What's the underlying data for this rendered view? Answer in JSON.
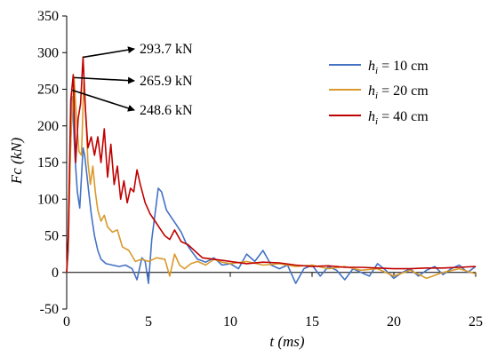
{
  "chart_data": {
    "type": "line",
    "title": "",
    "xlabel": "t (ms)",
    "ylabel": "Fc (kN)",
    "xlim": [
      0,
      25
    ],
    "ylim": [
      -50,
      350
    ],
    "x_ticks": [
      "0",
      "5",
      "10",
      "15",
      "20",
      "25"
    ],
    "y_ticks": [
      "-50",
      "0",
      "50",
      "100",
      "150",
      "200",
      "250",
      "300",
      "350"
    ],
    "grid": false,
    "legend": "upper-right",
    "series": [
      {
        "name": "hi = 10 cm",
        "label_italic": "h",
        "label_sub": "i",
        "label_rest": " = 10 cm",
        "color": "#4472c4",
        "x": [
          0,
          0.1,
          0.2,
          0.35,
          0.5,
          0.65,
          0.8,
          0.9,
          1.0,
          1.1,
          1.2,
          1.35,
          1.5,
          1.7,
          1.9,
          2.1,
          2.4,
          2.8,
          3.2,
          3.6,
          4.0,
          4.3,
          4.6,
          4.8,
          5.0,
          5.2,
          5.4,
          5.6,
          5.8,
          6.1,
          6.4,
          6.7,
          7.0,
          7.3,
          7.6,
          8.0,
          8.5,
          9.0,
          9.5,
          10.0,
          10.5,
          11.0,
          11.5,
          12.0,
          12.5,
          13.0,
          13.5,
          14.0,
          14.5,
          15.0,
          15.5,
          16.0,
          16.5,
          17.0,
          17.5,
          18.0,
          18.5,
          19.0,
          19.5,
          20.0,
          20.5,
          21.0,
          21.5,
          22.0,
          22.5,
          23.0,
          23.5,
          24.0,
          24.5,
          25.0
        ],
        "y": [
          0,
          30,
          150,
          240,
          160,
          110,
          88,
          130,
          170,
          160,
          140,
          110,
          80,
          50,
          30,
          18,
          12,
          10,
          8,
          10,
          5,
          -10,
          20,
          15,
          -15,
          45,
          80,
          115,
          110,
          85,
          75,
          65,
          55,
          40,
          30,
          18,
          14,
          20,
          10,
          12,
          5,
          25,
          15,
          30,
          10,
          5,
          10,
          -15,
          5,
          10,
          -5,
          8,
          3,
          -10,
          5,
          0,
          -5,
          12,
          3,
          -8,
          0,
          5,
          -5,
          3,
          8,
          -3,
          5,
          10,
          0,
          8
        ]
      },
      {
        "name": "hi = 20 cm",
        "label_italic": "h",
        "label_sub": "i",
        "label_rest": " = 20 cm",
        "color": "#d99a2b",
        "x": [
          0,
          0.1,
          0.25,
          0.45,
          0.6,
          0.75,
          0.9,
          1.05,
          1.2,
          1.3,
          1.45,
          1.6,
          1.75,
          1.9,
          2.1,
          2.3,
          2.5,
          2.8,
          3.1,
          3.4,
          3.8,
          4.2,
          4.6,
          5.0,
          5.5,
          6.0,
          6.3,
          6.6,
          6.9,
          7.2,
          7.6,
          8.0,
          8.5,
          9.0,
          9.5,
          10.0,
          11.0,
          12.0,
          13.0,
          14.0,
          15.0,
          16.0,
          17.0,
          18.0,
          19.0,
          20.0,
          21.0,
          22.0,
          23.0,
          24.0,
          25.0
        ],
        "y": [
          0,
          40,
          180,
          266,
          210,
          165,
          160,
          260,
          200,
          150,
          120,
          145,
          110,
          85,
          70,
          78,
          62,
          55,
          58,
          35,
          30,
          15,
          18,
          15,
          20,
          18,
          -5,
          25,
          10,
          5,
          12,
          15,
          10,
          18,
          14,
          12,
          15,
          10,
          12,
          8,
          10,
          5,
          8,
          3,
          5,
          -5,
          3,
          -8,
          0,
          5,
          -2
        ]
      },
      {
        "name": "hi = 40 cm",
        "label_italic": "h",
        "label_sub": "i",
        "label_rest": " = 40 cm",
        "color": "#c00000",
        "x": [
          0,
          0.1,
          0.25,
          0.4,
          0.55,
          0.7,
          0.85,
          1.0,
          1.15,
          1.3,
          1.5,
          1.7,
          1.9,
          2.1,
          2.3,
          2.5,
          2.7,
          2.9,
          3.1,
          3.3,
          3.5,
          3.7,
          3.9,
          4.1,
          4.3,
          4.5,
          4.8,
          5.1,
          5.4,
          5.7,
          6.0,
          6.3,
          6.6,
          7.0,
          7.4,
          7.8,
          8.3,
          9.0,
          10.0,
          11.0,
          12.0,
          13.0,
          14.0,
          15.0,
          16.0,
          17.0,
          18.0,
          19.0,
          20.0,
          21.0,
          22.0,
          23.0,
          24.0,
          25.0
        ],
        "y": [
          0,
          50,
          235,
          270,
          150,
          210,
          230,
          294,
          220,
          170,
          185,
          160,
          185,
          150,
          196,
          130,
          175,
          120,
          145,
          100,
          125,
          95,
          115,
          110,
          140,
          120,
          95,
          80,
          70,
          60,
          50,
          45,
          58,
          42,
          38,
          30,
          20,
          18,
          15,
          12,
          14,
          13,
          10,
          8,
          9,
          7,
          7,
          6,
          5,
          5,
          6,
          6,
          7,
          8
        ]
      }
    ],
    "annotations": [
      {
        "text": "293.7 kN",
        "x": 1.0,
        "y": 293.7
      },
      {
        "text": "265.9 kN",
        "x": 0.45,
        "y": 265.9
      },
      {
        "text": "248.6 kN",
        "x": 0.35,
        "y": 248.6
      }
    ]
  }
}
